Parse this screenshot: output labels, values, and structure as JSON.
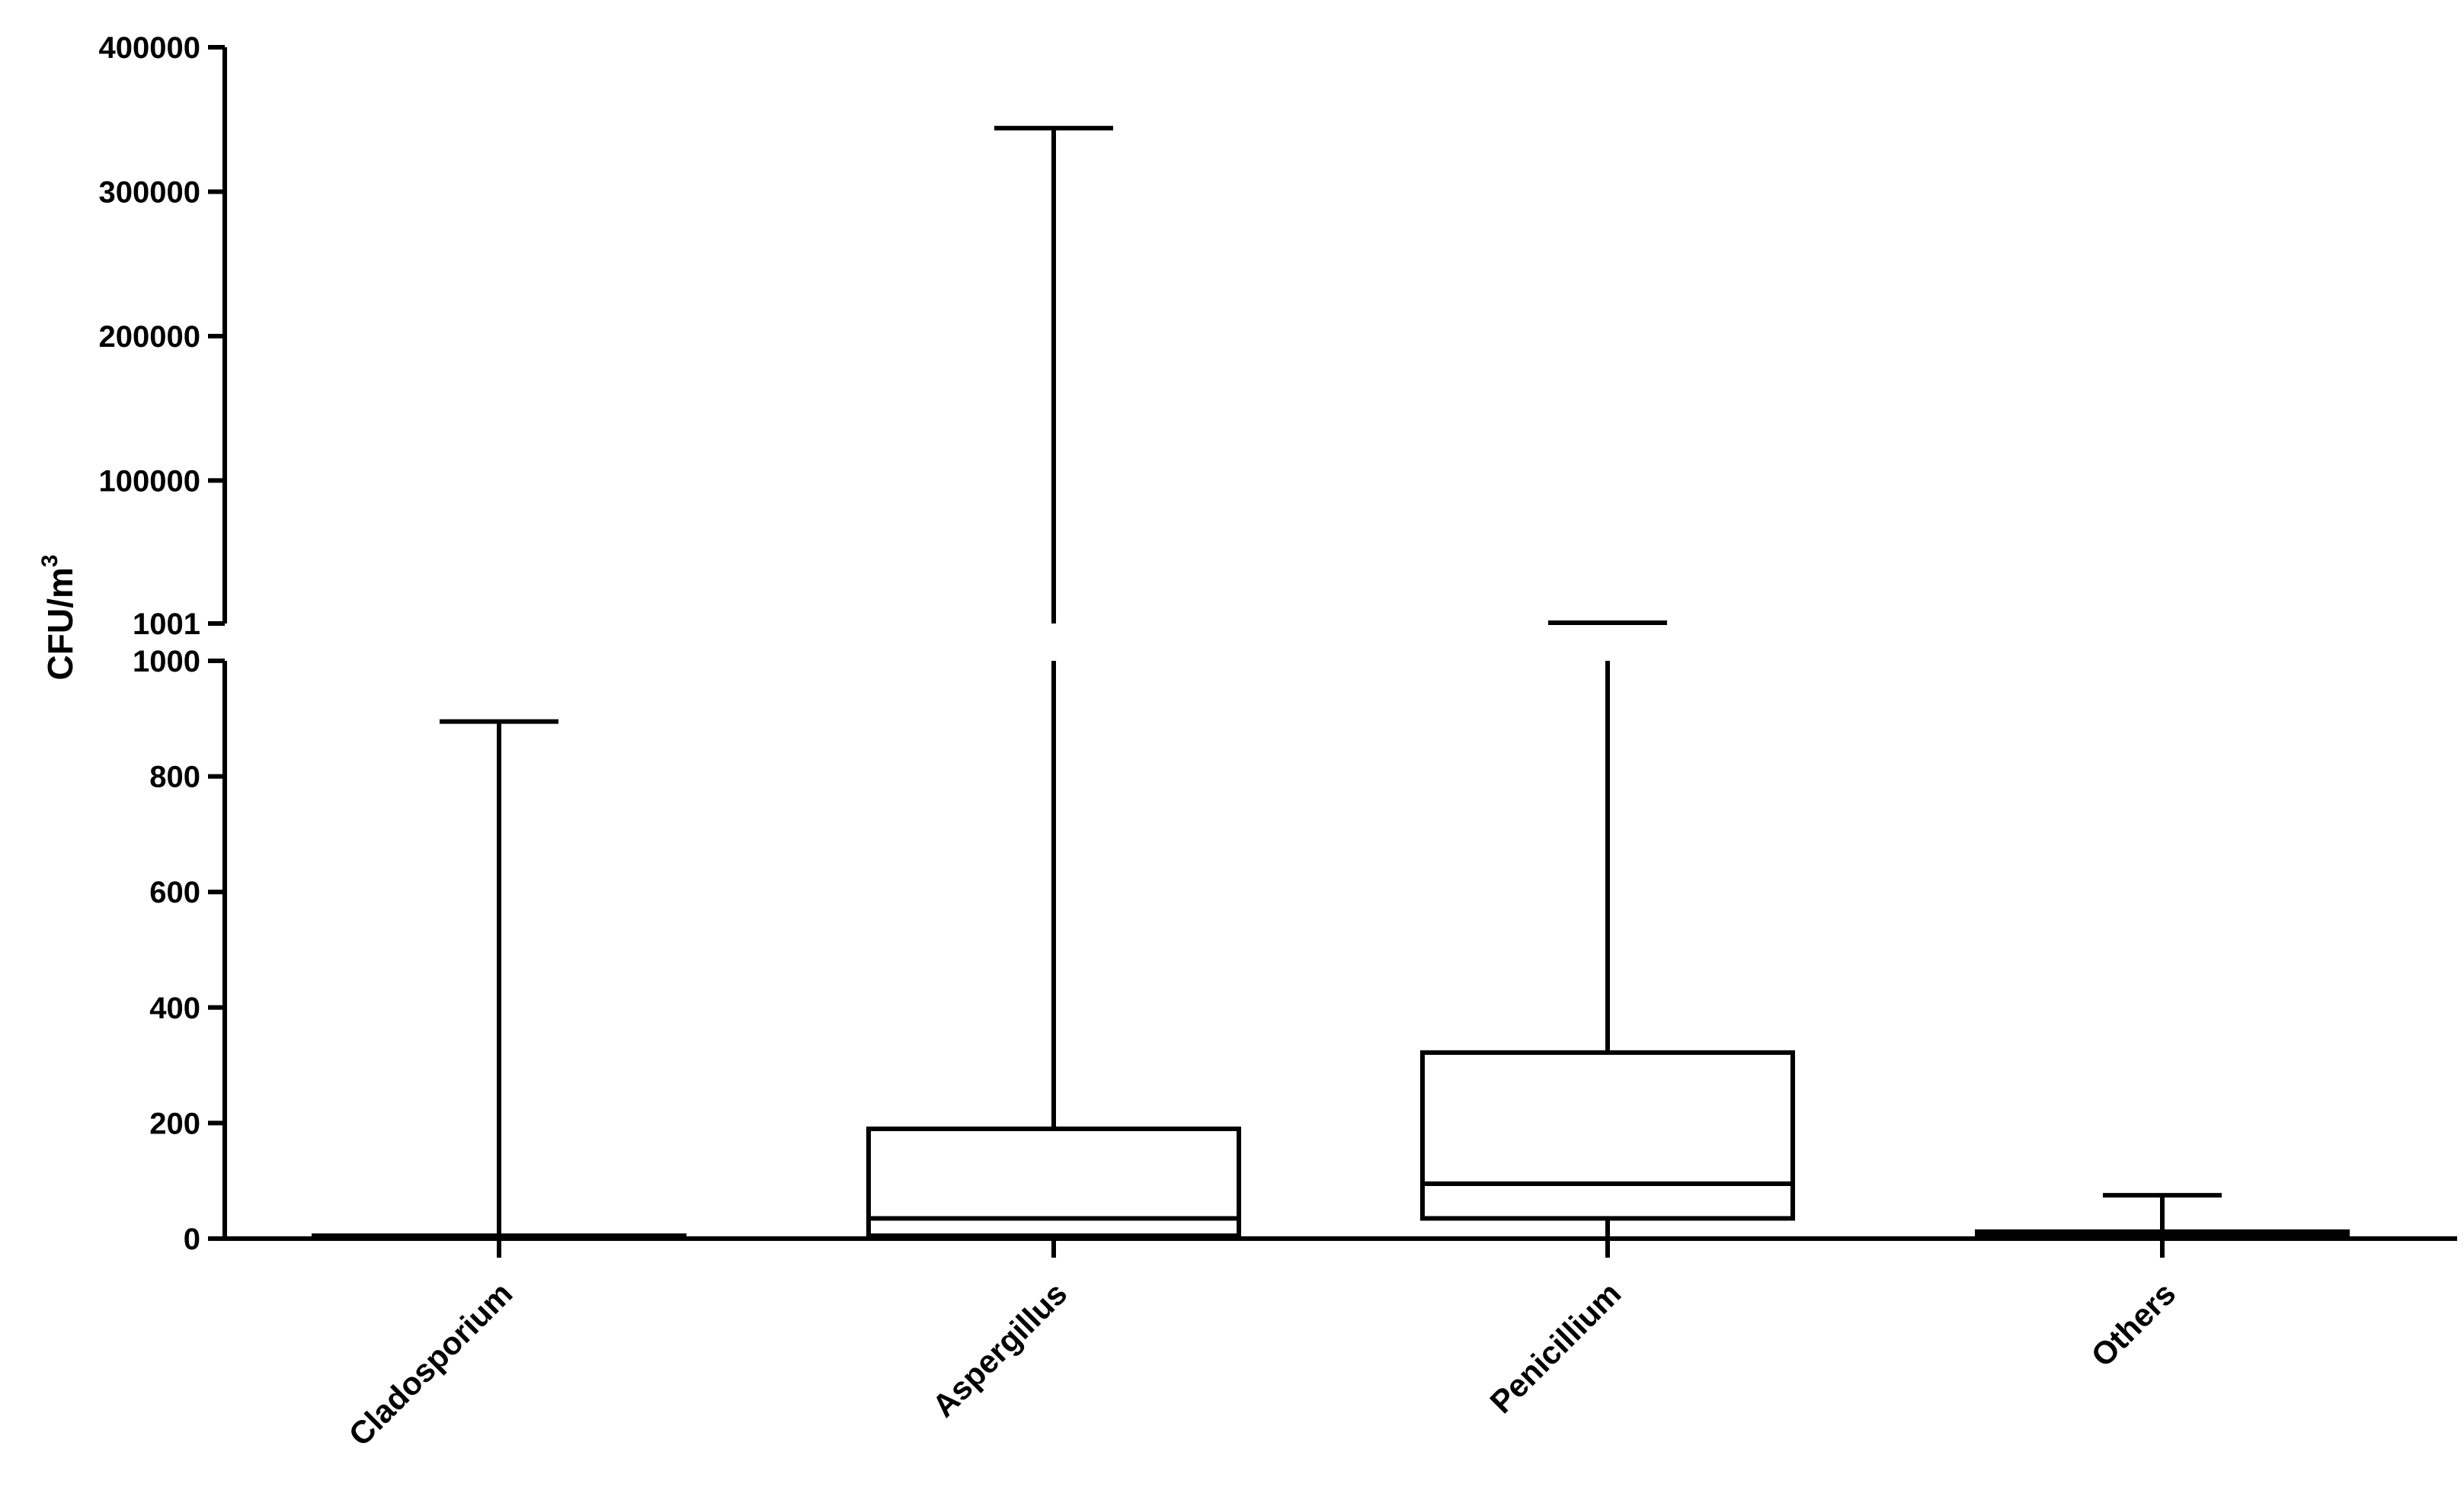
{
  "chart_data": {
    "type": "box",
    "title": "",
    "xlabel": "",
    "ylabel": "CFU/m",
    "ylabel_superscript": "3",
    "y_axis_segments": [
      {
        "range": [
          0,
          1000
        ],
        "ticks": [
          0,
          200,
          400,
          600,
          800,
          1000
        ],
        "tick_labels": [
          "0",
          "200",
          "400",
          "600",
          "800",
          "1000"
        ]
      },
      {
        "range": [
          1001,
          400000
        ],
        "ticks": [
          1001,
          100000,
          200000,
          300000,
          400000
        ],
        "tick_labels": [
          "1001",
          "100000",
          "200000",
          "300000",
          "400000"
        ]
      }
    ],
    "y_break_between": [
      1000,
      1001
    ],
    "categories": [
      "Cladosporium",
      "Aspergillus",
      "Penicillium",
      "Others"
    ],
    "boxes": [
      {
        "category": "Cladosporium",
        "min": 0,
        "q1": 0,
        "median": 0,
        "q3": 5,
        "max": 895
      },
      {
        "category": "Aspergillus",
        "min": 0,
        "q1": 5,
        "median": 35,
        "q3": 190,
        "max": 344000
      },
      {
        "category": "Penicillium",
        "min": 0,
        "q1": 35,
        "median": 95,
        "q3": 322,
        "max": 1500
      },
      {
        "category": "Others",
        "min": 0,
        "q1": 0,
        "median": 5,
        "q3": 12,
        "max": 75
      }
    ],
    "grid": false,
    "legend": "none",
    "color": "#000000"
  }
}
